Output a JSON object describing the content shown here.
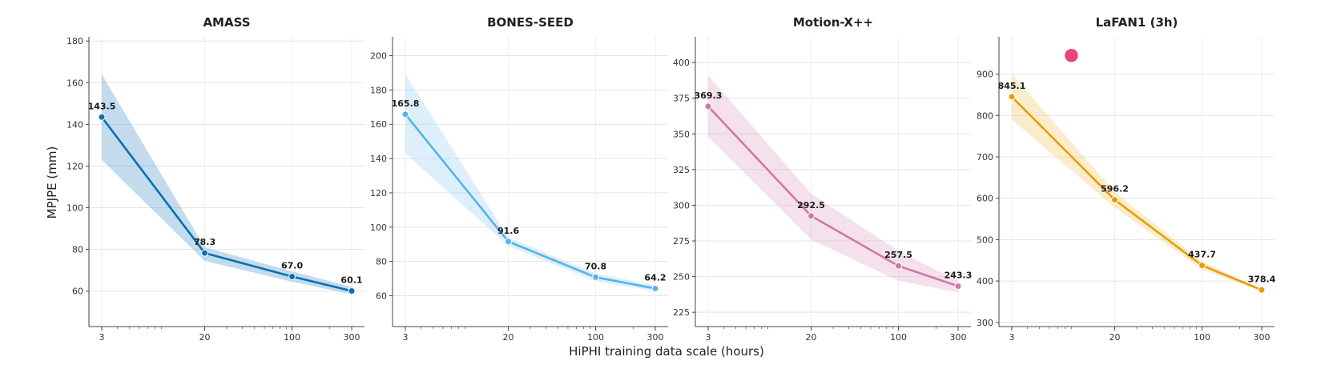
{
  "xlabel": "HiPHI training data scale (hours)",
  "ylabel": "MPJPE (mm)",
  "chart_data": [
    {
      "type": "line",
      "title": "AMASS",
      "xscale": "log",
      "x": [
        3,
        20,
        100,
        300
      ],
      "x_ticks": [
        3,
        20,
        100,
        300
      ],
      "values": [
        143.5,
        78.3,
        67.0,
        60.1
      ],
      "data_labels": [
        "143.5",
        "78.3",
        "67.0",
        "60.1"
      ],
      "band_upper": [
        164,
        81,
        69.5,
        62
      ],
      "band_lower": [
        123,
        74.5,
        64.5,
        58.5
      ],
      "ylim": [
        43,
        182
      ],
      "y_ticks": [
        60,
        80,
        100,
        120,
        140,
        160,
        180
      ],
      "color": "#0571b0",
      "band_color": "#6aa6cf"
    },
    {
      "type": "line",
      "title": "BONES-SEED",
      "xscale": "log",
      "x": [
        3,
        20,
        100,
        300
      ],
      "x_ticks": [
        3,
        20,
        100,
        300
      ],
      "values": [
        165.8,
        91.6,
        70.8,
        64.2
      ],
      "data_labels": [
        "165.8",
        "91.6",
        "70.8",
        "64.2"
      ],
      "band_upper": [
        189,
        94,
        73,
        66
      ],
      "band_lower": [
        143,
        89,
        68.5,
        62.5
      ],
      "ylim": [
        42,
        211
      ],
      "y_ticks": [
        60,
        80,
        100,
        120,
        140,
        160,
        180,
        200
      ],
      "color": "#56b4e9",
      "band_color": "#a9d8f5"
    },
    {
      "type": "line",
      "title": "Motion-X++",
      "xscale": "log",
      "x": [
        3,
        20,
        100,
        300
      ],
      "x_ticks": [
        3,
        20,
        100,
        300
      ],
      "values": [
        369.3,
        292.5,
        257.5,
        243.3
      ],
      "data_labels": [
        "369.3",
        "292.5",
        "257.5",
        "243.3"
      ],
      "band_upper": [
        391,
        308,
        268,
        247
      ],
      "band_lower": [
        348,
        276,
        247,
        239
      ],
      "ylim": [
        215,
        418
      ],
      "y_ticks": [
        225,
        250,
        275,
        300,
        325,
        350,
        375,
        400
      ],
      "color": "#cc79a7",
      "band_color": "#e3b4cf"
    },
    {
      "type": "line",
      "title": "LaFAN1 (3h)",
      "xscale": "log",
      "x": [
        3,
        20,
        100,
        300
      ],
      "x_ticks": [
        3,
        20,
        100,
        300
      ],
      "values": [
        845.1,
        596.2,
        437.7,
        378.4
      ],
      "data_labels": [
        "845.1",
        "596.2",
        "437.7",
        "378.4"
      ],
      "band_upper": [
        900,
        615,
        447,
        381
      ],
      "band_lower": [
        790,
        578,
        428,
        375
      ],
      "ylim": [
        290,
        990
      ],
      "y_ticks": [
        300,
        400,
        500,
        600,
        700,
        800,
        900
      ],
      "color": "#e69f00",
      "band_color": "#f3cf7f",
      "marker": {
        "x": 9,
        "y": 945,
        "color": "#e8467c"
      }
    }
  ]
}
